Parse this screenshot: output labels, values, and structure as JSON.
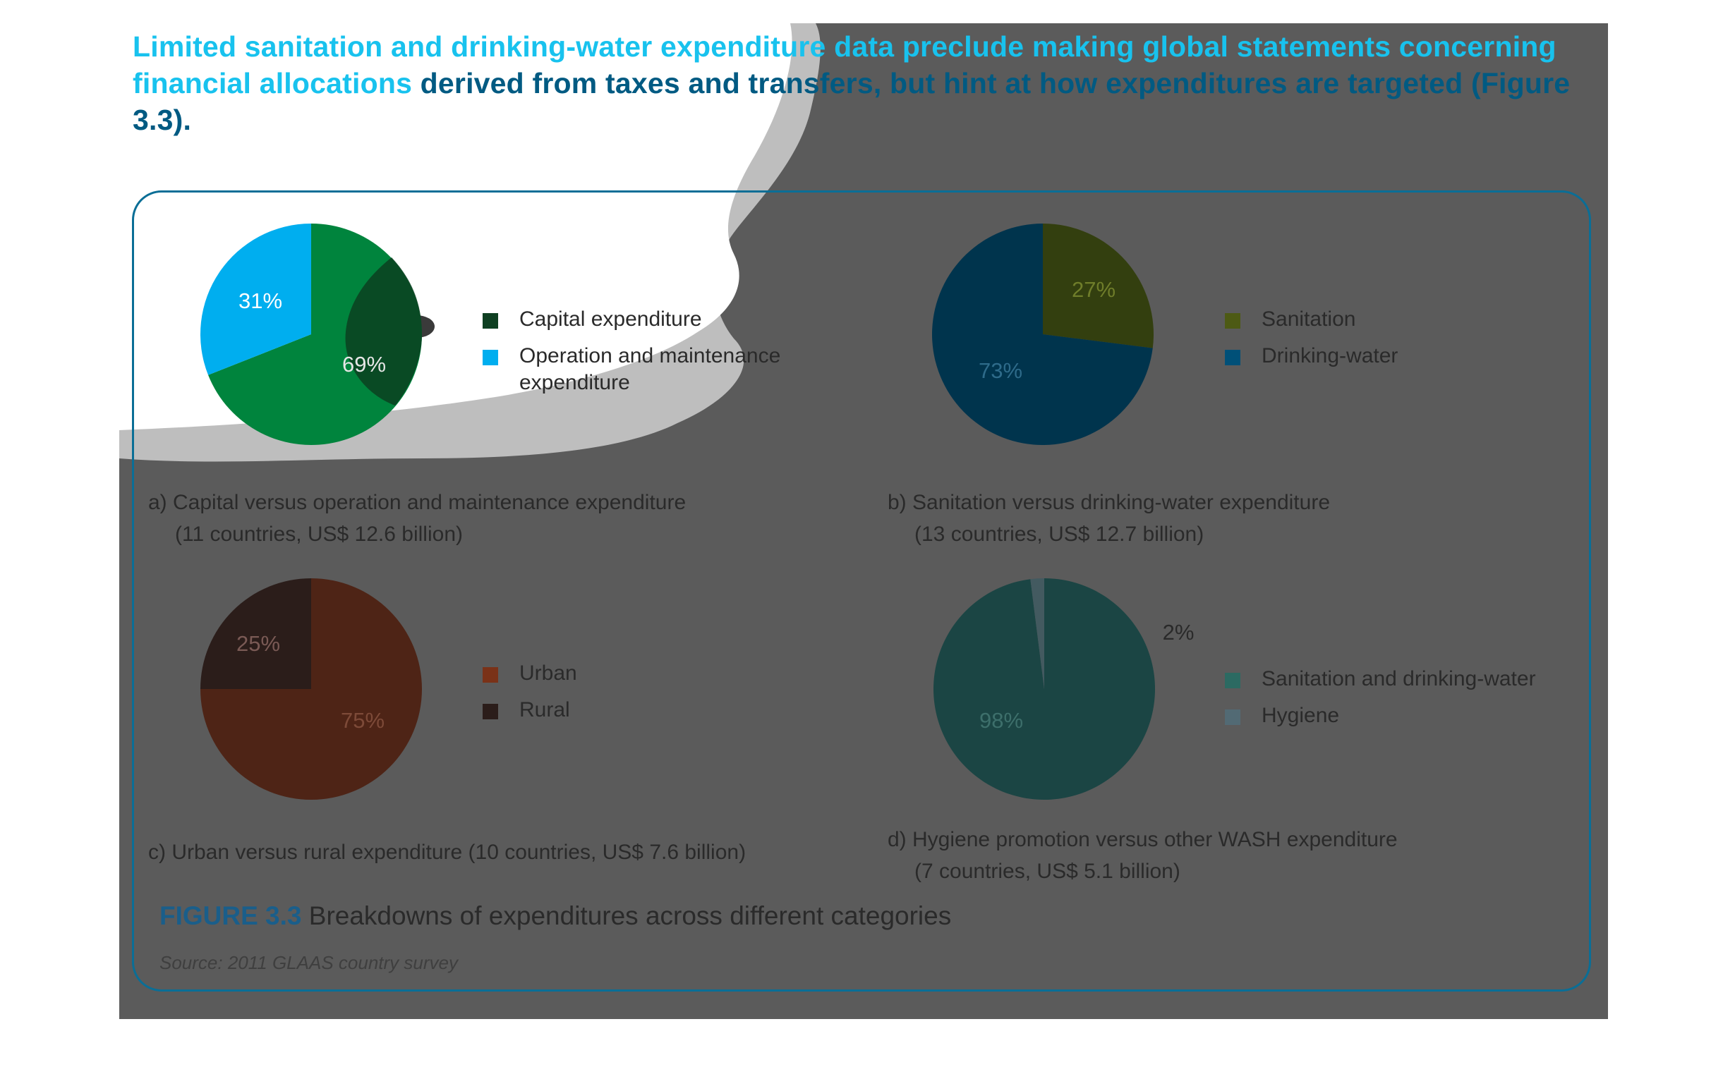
{
  "intro": {
    "highlight": "Limited sanitation and drinking-water expenditure data preclude making global statements concerning financial allocations",
    "rest": " derived from taxes and transfers, but hint at how expenditures are targeted (Figure 3.3)."
  },
  "figure": {
    "number": "FIGURE 3.3",
    "title": " Breakdowns of expenditures across different categories",
    "source": "Source: 2011 GLAAS country survey"
  },
  "chart_data": [
    {
      "type": "pie",
      "id": "a",
      "caption_line1": "a) Capital versus operation and maintenance expenditure",
      "caption_line2": "(11 countries, US$ 12.6 billion)",
      "slices": [
        {
          "label": "Capital expenditure",
          "value": 69,
          "text": "69%",
          "color": "#00843d"
        },
        {
          "label": "Operation and maintenance expenditure",
          "value": 31,
          "text": "31%",
          "color": "#00aeef"
        }
      ]
    },
    {
      "type": "pie",
      "id": "b",
      "caption_line1": "b) Sanitation versus drinking-water expenditure",
      "caption_line2": "(13 countries, US$ 12.7 billion)",
      "slices": [
        {
          "label": "Sanitation",
          "value": 27,
          "text": "27%",
          "color": "#333f0f"
        },
        {
          "label": "Drinking-water",
          "value": 73,
          "text": "73%",
          "color": "#00344d"
        }
      ]
    },
    {
      "type": "pie",
      "id": "c",
      "caption_line1": "c) Urban versus rural expenditure (10 countries, US$ 7.6 billion)",
      "caption_line2": "",
      "slices": [
        {
          "label": "Urban",
          "value": 75,
          "text": "75%",
          "color": "#4e2416"
        },
        {
          "label": "Rural",
          "value": 25,
          "text": "25%",
          "color": "#2b1d1a"
        }
      ]
    },
    {
      "type": "pie",
      "id": "d",
      "caption_line1": "d) Hygiene promotion versus other WASH expenditure",
      "caption_line2": "(7 countries, US$ 5.1 billion)",
      "slices": [
        {
          "label": "Sanitation and drinking-water",
          "value": 98,
          "text": "98%",
          "color": "#1b4544"
        },
        {
          "label": "Hygiene",
          "value": 2,
          "text": "2%",
          "color": "#435a60"
        }
      ]
    }
  ]
}
